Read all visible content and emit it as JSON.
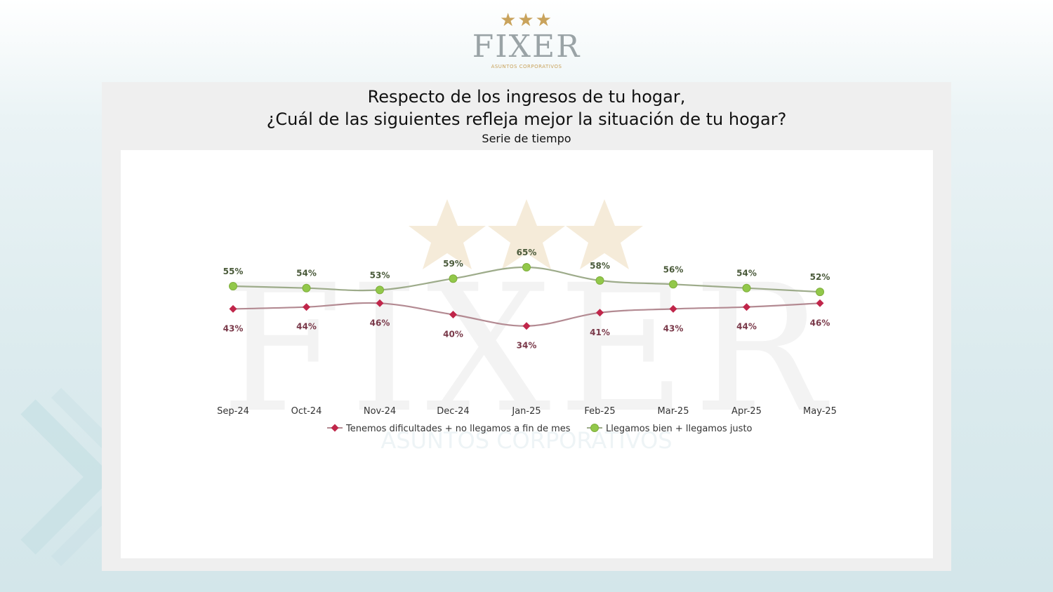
{
  "logo": {
    "stars": "★★★",
    "brand": "FIXER",
    "subtitle": "ASUNTOS CORPORATIVOS"
  },
  "header": {
    "title_line1": "Respecto de los ingresos de tu hogar,",
    "title_line2": "¿Cuál de las siguientes refleja mejor la situación de tu hogar?",
    "subtitle": "Serie de tiempo"
  },
  "chart_data": {
    "type": "line",
    "categories": [
      "Sep-24",
      "Oct-24",
      "Nov-24",
      "Dec-24",
      "Jan-25",
      "Feb-25",
      "Mar-25",
      "Apr-25",
      "May-25"
    ],
    "series": [
      {
        "name": "Tenemos dificultades + no llegamos a fin de mes",
        "values": [
          43,
          44,
          46,
          40,
          34,
          41,
          43,
          44,
          46
        ],
        "color": "#c0264a",
        "line_color": "#b38a92",
        "marker": "diamond",
        "label_color": "#7a3a4a"
      },
      {
        "name": "Llegamos bien + llegamos justo",
        "values": [
          55,
          54,
          53,
          59,
          65,
          58,
          56,
          54,
          52
        ],
        "color": "#92c84a",
        "line_color": "#9dab8a",
        "marker": "circle",
        "label_color": "#4a5a3a"
      }
    ],
    "value_suffix": "%",
    "legend_position": "bottom",
    "grid": false,
    "smooth": true
  },
  "colors": {
    "panel": "#efefef",
    "gold": "#c9a35c",
    "brand_gray": "#9aa3a6"
  }
}
